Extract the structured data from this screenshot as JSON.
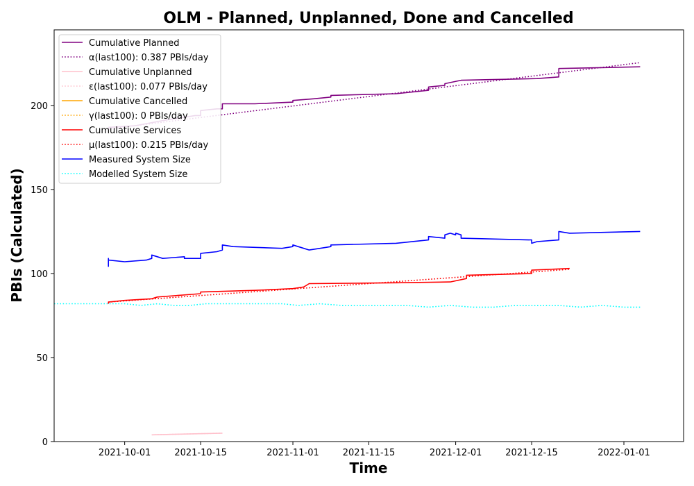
{
  "chart_data": {
    "type": "line",
    "title": "OLM - Planned, Unplanned, Done  and Cancelled",
    "xlabel": "Time",
    "ylabel": "PBIs (Calculated)",
    "ylim": [
      0,
      245
    ],
    "xlim": [
      "2021-09-18",
      "2022-01-12"
    ],
    "x_ticks": [
      "2021-10-01",
      "2021-10-15",
      "2021-11-01",
      "2021-11-15",
      "2021-12-01",
      "2021-12-15",
      "2022-01-01"
    ],
    "y_ticks": [
      0,
      50,
      100,
      150,
      200
    ],
    "grid": false,
    "legend_position": "top-left",
    "series": [
      {
        "name": "Cumulative Planned",
        "color": "#800080",
        "style": "solid",
        "points": [
          [
            "2021-09-28",
            187
          ],
          [
            "2021-10-03",
            188
          ],
          [
            "2021-10-08",
            191
          ],
          [
            "2021-10-14",
            194
          ],
          [
            "2021-10-15",
            194
          ],
          [
            "2021-10-15",
            197
          ],
          [
            "2021-10-18",
            198
          ],
          [
            "2021-10-19",
            198
          ],
          [
            "2021-10-19",
            201
          ],
          [
            "2021-10-25",
            201
          ],
          [
            "2021-11-01",
            202
          ],
          [
            "2021-11-01",
            203
          ],
          [
            "2021-11-05",
            204
          ],
          [
            "2021-11-08",
            205
          ],
          [
            "2021-11-08",
            206
          ],
          [
            "2021-11-20",
            207
          ],
          [
            "2021-11-26",
            209
          ],
          [
            "2021-11-26",
            211
          ],
          [
            "2021-11-29",
            212
          ],
          [
            "2021-11-29",
            213
          ],
          [
            "2021-12-02",
            215
          ],
          [
            "2021-12-16",
            216
          ],
          [
            "2021-12-20",
            217
          ],
          [
            "2021-12-20",
            222
          ],
          [
            "2022-01-04",
            223
          ]
        ]
      },
      {
        "name": "α(last100): 0.387 PBIs/day",
        "color": "#800080",
        "style": "dotted",
        "points": [
          [
            "2021-09-28",
            186
          ],
          [
            "2022-01-04",
            225.5
          ]
        ]
      },
      {
        "name": "Cumulative Unplanned",
        "color": "#ffc0cb",
        "style": "solid",
        "points": [
          [
            "2021-10-06",
            4
          ],
          [
            "2021-10-19",
            5
          ]
        ]
      },
      {
        "name": "ε(last100): 0.077 PBIs/day",
        "color": "#ffc0cb",
        "style": "dotted",
        "points": [
          [
            "2021-10-06",
            4
          ],
          [
            "2021-10-19",
            5
          ]
        ]
      },
      {
        "name": "Cumulative Cancelled",
        "color": "#ffa500",
        "style": "solid",
        "points": []
      },
      {
        "name": "γ(last100): 0 PBIs/day",
        "color": "#ffa500",
        "style": "dotted",
        "points": []
      },
      {
        "name": "Cumulative Services",
        "color": "#ff0000",
        "style": "solid",
        "points": [
          [
            "2021-09-28",
            82
          ],
          [
            "2021-09-28",
            83
          ],
          [
            "2021-10-01",
            84
          ],
          [
            "2021-10-06",
            85
          ],
          [
            "2021-10-07",
            86
          ],
          [
            "2021-10-15",
            88
          ],
          [
            "2021-10-15",
            89
          ],
          [
            "2021-10-25",
            90
          ],
          [
            "2021-11-01",
            91
          ],
          [
            "2021-11-03",
            92
          ],
          [
            "2021-11-04",
            94
          ],
          [
            "2021-11-20",
            94.5
          ],
          [
            "2021-11-30",
            95
          ],
          [
            "2021-12-03",
            97
          ],
          [
            "2021-12-03",
            99
          ],
          [
            "2021-12-15",
            100
          ],
          [
            "2021-12-15",
            102
          ],
          [
            "2021-12-22",
            103
          ]
        ]
      },
      {
        "name": "μ(last100): 0.215 PBIs/day",
        "color": "#ff0000",
        "style": "dotted",
        "points": [
          [
            "2021-09-28",
            83
          ],
          [
            "2021-12-22",
            102.5
          ]
        ]
      },
      {
        "name": "Measured System Size",
        "color": "#0000ff",
        "style": "solid",
        "points": [
          [
            "2021-09-28",
            104
          ],
          [
            "2021-09-28",
            109
          ],
          [
            "2021-09-28",
            108
          ],
          [
            "2021-10-01",
            107
          ],
          [
            "2021-10-05",
            108
          ],
          [
            "2021-10-06",
            109
          ],
          [
            "2021-10-06",
            111
          ],
          [
            "2021-10-08",
            109
          ],
          [
            "2021-10-12",
            110
          ],
          [
            "2021-10-12",
            109
          ],
          [
            "2021-10-15",
            109
          ],
          [
            "2021-10-15",
            112
          ],
          [
            "2021-10-18",
            113
          ],
          [
            "2021-10-19",
            114
          ],
          [
            "2021-10-19",
            117
          ],
          [
            "2021-10-21",
            116
          ],
          [
            "2021-10-30",
            115
          ],
          [
            "2021-11-01",
            116
          ],
          [
            "2021-11-01",
            117
          ],
          [
            "2021-11-03",
            115
          ],
          [
            "2021-11-04",
            114
          ],
          [
            "2021-11-06",
            115
          ],
          [
            "2021-11-08",
            116
          ],
          [
            "2021-11-08",
            117
          ],
          [
            "2021-11-20",
            118
          ],
          [
            "2021-11-26",
            120
          ],
          [
            "2021-11-26",
            122
          ],
          [
            "2021-11-29",
            121
          ],
          [
            "2021-11-29",
            123
          ],
          [
            "2021-11-30",
            124
          ],
          [
            "2021-12-01",
            123
          ],
          [
            "2021-12-01",
            124
          ],
          [
            "2021-12-02",
            123
          ],
          [
            "2021-12-02",
            121
          ],
          [
            "2021-12-15",
            120
          ],
          [
            "2021-12-15",
            118
          ],
          [
            "2021-12-16",
            119
          ],
          [
            "2021-12-20",
            120
          ],
          [
            "2021-12-20",
            125
          ],
          [
            "2021-12-22",
            124
          ],
          [
            "2022-01-04",
            125
          ]
        ]
      },
      {
        "name": "Modelled System Size",
        "color": "#00ffff",
        "style": "dotted",
        "points": [
          [
            "2021-09-18",
            82
          ],
          [
            "2021-09-28",
            82
          ],
          [
            "2021-10-01",
            82
          ],
          [
            "2021-10-04",
            81
          ],
          [
            "2021-10-07",
            82
          ],
          [
            "2021-10-10",
            81
          ],
          [
            "2021-10-13",
            81
          ],
          [
            "2021-10-16",
            82
          ],
          [
            "2021-10-20",
            82
          ],
          [
            "2021-10-25",
            82
          ],
          [
            "2021-10-30",
            82
          ],
          [
            "2021-11-02",
            81
          ],
          [
            "2021-11-06",
            82
          ],
          [
            "2021-11-10",
            81
          ],
          [
            "2021-11-14",
            81
          ],
          [
            "2021-11-18",
            81
          ],
          [
            "2021-11-22",
            81
          ],
          [
            "2021-11-26",
            80
          ],
          [
            "2021-11-30",
            81
          ],
          [
            "2021-12-04",
            80
          ],
          [
            "2021-12-08",
            80
          ],
          [
            "2021-12-12",
            81
          ],
          [
            "2021-12-16",
            81
          ],
          [
            "2021-12-20",
            81
          ],
          [
            "2021-12-24",
            80
          ],
          [
            "2021-12-28",
            81
          ],
          [
            "2022-01-01",
            80
          ],
          [
            "2022-01-04",
            80
          ]
        ]
      }
    ]
  }
}
